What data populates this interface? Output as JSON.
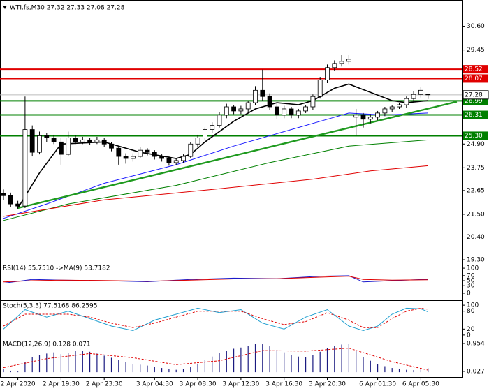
{
  "chart_data": [
    {
      "type": "candlestick",
      "title": "WTI.fs,M30  27.32 27.33 27.08 27.28",
      "categories": [
        null,
        null,
        "2 Apr 2020",
        null,
        null,
        null,
        null,
        null,
        "2 Apr 19:30",
        null,
        null,
        null,
        null,
        null,
        "2 Apr 23:30",
        null,
        null,
        null,
        null,
        null,
        null,
        "3 Apr 04:30",
        null,
        null,
        null,
        null,
        null,
        "3 Apr 08:30",
        null,
        null,
        null,
        null,
        null,
        "3 Apr 12:30",
        null,
        null,
        null,
        null,
        null,
        "3 Apr 16:30",
        null,
        null,
        null,
        null,
        null,
        "3 Apr 20:30",
        null,
        null,
        null,
        null,
        null,
        null,
        "6 Apr 01:30",
        null,
        null,
        null,
        null,
        null,
        "6 Apr 05:30",
        null
      ],
      "open": [
        22.5,
        22.4,
        22.0,
        21.9,
        25.6,
        24.5,
        25.3,
        25.2,
        25.0,
        24.4,
        25.2,
        25.0,
        25.1,
        25.0,
        25.1,
        24.9,
        24.7,
        24.3,
        24.2,
        24.3,
        24.6,
        24.5,
        24.3,
        24.2,
        24.0,
        24.1,
        24.3,
        24.9,
        25.2,
        25.6,
        25.8,
        26.3,
        26.7,
        26.5,
        26.6,
        26.9,
        27.5,
        27.2,
        26.7,
        26.3,
        26.6,
        26.3,
        26.5,
        26.7,
        27.2,
        28.0,
        28.6,
        28.8,
        28.9,
        26.2,
        26.3,
        26.1,
        26.2,
        26.4,
        26.6,
        26.7,
        26.8,
        27.1,
        27.3,
        27.32
      ],
      "high": [
        22.7,
        22.55,
        22.15,
        27.2,
        25.8,
        25.5,
        25.45,
        25.35,
        25.2,
        25.5,
        25.35,
        25.25,
        25.2,
        25.25,
        25.2,
        25.0,
        24.8,
        24.45,
        24.45,
        24.75,
        24.7,
        24.6,
        24.4,
        24.3,
        24.2,
        24.4,
        25.0,
        25.35,
        25.7,
        25.95,
        26.45,
        26.85,
        26.8,
        26.75,
        27.0,
        27.7,
        28.5,
        27.35,
        26.85,
        26.75,
        26.7,
        26.6,
        26.8,
        27.3,
        28.15,
        28.75,
        28.95,
        29.2,
        29.2,
        26.6,
        26.4,
        26.35,
        26.5,
        26.7,
        26.8,
        26.9,
        27.2,
        27.45,
        27.65,
        27.33
      ],
      "low": [
        22.2,
        21.85,
        21.75,
        21.8,
        24.3,
        24.4,
        25.0,
        24.9,
        23.9,
        24.3,
        24.9,
        24.9,
        24.85,
        24.9,
        24.75,
        24.55,
        23.9,
        23.95,
        24.05,
        24.2,
        24.35,
        24.15,
        24.05,
        23.85,
        23.9,
        24.0,
        24.2,
        24.75,
        25.1,
        25.45,
        25.7,
        26.15,
        26.35,
        26.35,
        26.45,
        26.8,
        27.0,
        26.55,
        26.1,
        26.15,
        26.15,
        26.15,
        26.4,
        26.55,
        27.1,
        27.85,
        28.45,
        28.65,
        28.75,
        25.3,
        25.7,
        25.9,
        26.05,
        26.25,
        26.45,
        26.6,
        26.65,
        26.95,
        27.15,
        27.08
      ],
      "close": [
        22.4,
        22.0,
        21.9,
        25.6,
        24.5,
        25.3,
        25.2,
        25.0,
        24.4,
        25.2,
        25.0,
        25.1,
        25.0,
        25.1,
        24.9,
        24.7,
        24.3,
        24.2,
        24.3,
        24.6,
        24.5,
        24.3,
        24.2,
        24.0,
        24.1,
        24.3,
        24.9,
        25.2,
        25.6,
        25.8,
        26.3,
        26.7,
        26.5,
        26.6,
        26.9,
        27.5,
        27.2,
        26.7,
        26.3,
        26.6,
        26.3,
        26.5,
        26.7,
        27.2,
        28.0,
        28.6,
        28.8,
        28.9,
        29.0,
        26.3,
        26.1,
        26.2,
        26.4,
        26.6,
        26.7,
        26.8,
        27.1,
        27.3,
        27.5,
        27.28
      ],
      "up_color": "#ffffff",
      "down_color": "#000000",
      "lines": [
        {
          "color": "#000000",
          "width": 1.6,
          "x": [
            2,
            5,
            8,
            14,
            19,
            24,
            26,
            28,
            32,
            35,
            38,
            41,
            43,
            46,
            48,
            51,
            54,
            56,
            59
          ],
          "values": [
            21.8,
            23.5,
            24.9,
            25.0,
            24.5,
            24.2,
            24.4,
            25.0,
            26.0,
            26.6,
            26.9,
            26.8,
            27.0,
            27.6,
            27.8,
            27.4,
            27.0,
            26.9,
            27.0
          ]
        },
        {
          "color": "#1a1aff",
          "width": 1,
          "x": [
            0,
            6,
            14,
            24,
            32,
            39,
            45,
            48,
            53,
            59
          ],
          "values": [
            21.3,
            22.0,
            23.0,
            23.9,
            24.8,
            25.5,
            26.1,
            26.4,
            26.3,
            26.4
          ]
        },
        {
          "color": "#008000",
          "width": 1,
          "x": [
            0,
            9,
            24,
            37,
            48,
            59
          ],
          "values": [
            21.2,
            22.0,
            22.9,
            24.0,
            24.8,
            25.1
          ]
        },
        {
          "color": "#e00000",
          "width": 1,
          "x": [
            0,
            14,
            29,
            43,
            51,
            59
          ],
          "values": [
            21.4,
            22.2,
            22.7,
            23.2,
            23.6,
            23.85
          ]
        },
        {
          "color": "#1f9a1f",
          "width": 2.4,
          "x": [
            2,
            63
          ],
          "values": [
            21.8,
            26.95
          ]
        }
      ],
      "levels": [
        {
          "value": 28.52,
          "color": "#e00000"
        },
        {
          "value": 28.07,
          "color": "#e00000"
        },
        {
          "value": 26.99,
          "color": "#008000"
        },
        {
          "value": 26.31,
          "color": "#008000"
        },
        {
          "value": 25.3,
          "label": "25.30",
          "color": "#008000"
        }
      ],
      "current_price": 27.28,
      "ylim": [
        19.2,
        31.7
      ],
      "yticks": [
        {
          "value": 30.6,
          "label": "30.60"
        },
        29.45,
        {
          "value": 24.9,
          "label": "24.90"
        },
        23.75,
        22.65,
        {
          "value": 21.5,
          "label": "21.50"
        },
        {
          "value": 20.4,
          "label": "20.40"
        },
        {
          "value": 19.3,
          "label": "19.30"
        }
      ]
    },
    {
      "type": "line",
      "title": "RSI(14) 55.7510 ->MA(9) 53.7182",
      "lines": [
        {
          "color": "#1a1acc",
          "width": 1,
          "x": [
            0,
            4,
            8,
            14,
            20,
            26,
            32,
            38,
            44,
            48,
            50,
            54,
            59
          ],
          "values": [
            40,
            55,
            52,
            50,
            46,
            55,
            60,
            58,
            68,
            70,
            45,
            50,
            55.75
          ]
        },
        {
          "color": "#e00000",
          "width": 1,
          "x": [
            0,
            4,
            8,
            14,
            20,
            26,
            32,
            38,
            44,
            48,
            50,
            54,
            59
          ],
          "values": [
            45,
            50,
            52,
            51,
            48,
            52,
            57,
            58,
            64,
            68,
            55,
            52,
            53.72
          ]
        }
      ],
      "ylim": [
        -28,
        117
      ],
      "yticks": [
        100,
        70,
        50,
        30,
        0
      ]
    },
    {
      "type": "line",
      "title": "Stoch(5,3,3) 77.5168 86.2595",
      "lines": [
        {
          "color": "#1f9fd0",
          "width": 1,
          "x": [
            0,
            3,
            6,
            9,
            12,
            15,
            18,
            21,
            24,
            27,
            30,
            33,
            36,
            39,
            42,
            45,
            48,
            50,
            52,
            54,
            56,
            58,
            59
          ],
          "values": [
            20,
            85,
            60,
            80,
            55,
            30,
            15,
            50,
            70,
            90,
            75,
            85,
            40,
            20,
            60,
            85,
            30,
            15,
            30,
            70,
            90,
            88,
            77.5
          ]
        },
        {
          "color": "#e00000",
          "width": 1,
          "dash": true,
          "x": [
            0,
            3,
            6,
            9,
            12,
            15,
            18,
            21,
            24,
            27,
            30,
            33,
            36,
            39,
            42,
            45,
            48,
            50,
            52,
            54,
            56,
            58,
            59
          ],
          "values": [
            30,
            70,
            70,
            70,
            60,
            40,
            25,
            40,
            60,
            80,
            80,
            80,
            55,
            35,
            45,
            75,
            50,
            25,
            25,
            55,
            80,
            90,
            86.3
          ]
        }
      ],
      "ylim": [
        -12,
        112
      ],
      "yticks": [
        100,
        80,
        20,
        0
      ]
    },
    {
      "type": "bar",
      "title": "MACD(12,26,9) 0.128 0.071",
      "values": [
        0.1,
        0.05,
        0.02,
        0.35,
        0.5,
        0.58,
        0.62,
        0.66,
        0.6,
        0.64,
        0.7,
        0.72,
        0.68,
        0.62,
        0.55,
        0.48,
        0.4,
        0.33,
        0.28,
        0.25,
        0.22,
        0.18,
        0.14,
        0.1,
        0.08,
        0.1,
        0.18,
        0.28,
        0.4,
        0.52,
        0.63,
        0.72,
        0.78,
        0.82,
        0.88,
        0.95,
        0.93,
        0.86,
        0.74,
        0.66,
        0.58,
        0.52,
        0.5,
        0.56,
        0.68,
        0.8,
        0.88,
        0.92,
        0.95,
        0.7,
        0.5,
        0.38,
        0.28,
        0.2,
        0.14,
        0.1,
        0.08,
        0.07,
        0.09,
        0.13
      ],
      "color": "#1a1a80",
      "lines": [
        {
          "color": "#e00000",
          "width": 1,
          "dash": true,
          "x": [
            0,
            6,
            12,
            18,
            24,
            30,
            36,
            42,
            48,
            54,
            59
          ],
          "values": [
            0.15,
            0.45,
            0.62,
            0.48,
            0.25,
            0.38,
            0.72,
            0.7,
            0.8,
            0.35,
            0.07
          ]
        }
      ],
      "ylim": [
        -0.16,
        1.07
      ],
      "yticks": [
        0.954,
        0.027
      ]
    }
  ]
}
